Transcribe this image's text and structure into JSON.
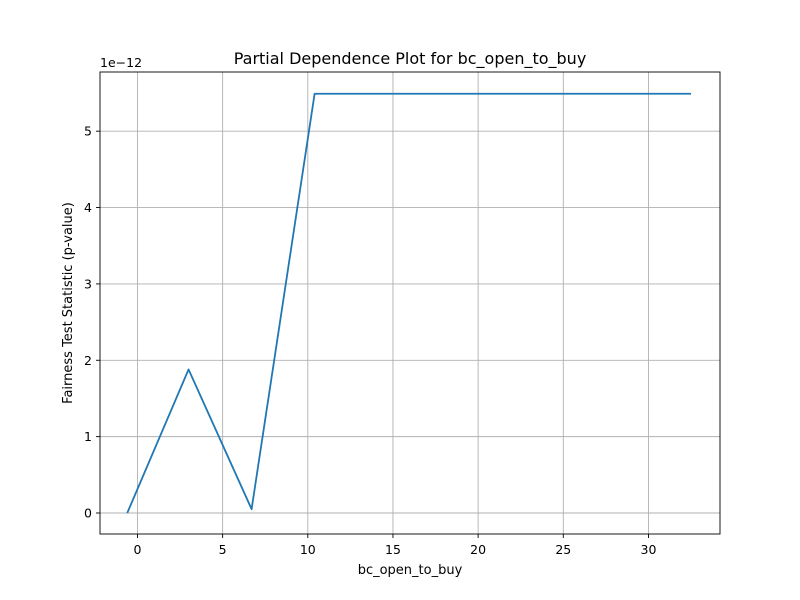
{
  "chart_data": {
    "type": "line",
    "title": "Partial Dependence Plot for bc_open_to_buy",
    "xlabel": "bc_open_to_buy",
    "ylabel": "Fairness Test Statistic (p-value)",
    "y_offset_label": "1e−12",
    "xlim": [
      -2.2,
      34.2
    ],
    "ylim": [
      -0.275,
      5.775
    ],
    "x_ticks": [
      0,
      5,
      10,
      15,
      20,
      25,
      30
    ],
    "x_tick_labels": [
      "0",
      "5",
      "10",
      "15",
      "20",
      "25",
      "30"
    ],
    "y_ticks": [
      0,
      1,
      2,
      3,
      4,
      5
    ],
    "y_tick_labels": [
      "0",
      "1",
      "2",
      "3",
      "4",
      "5"
    ],
    "grid": true,
    "series": [
      {
        "color": "#1f77b4",
        "x": [
          -0.6,
          3.0,
          6.7,
          10.4,
          32.5
        ],
        "y": [
          0.0,
          1.88,
          0.05,
          5.49,
          5.49
        ]
      }
    ]
  }
}
